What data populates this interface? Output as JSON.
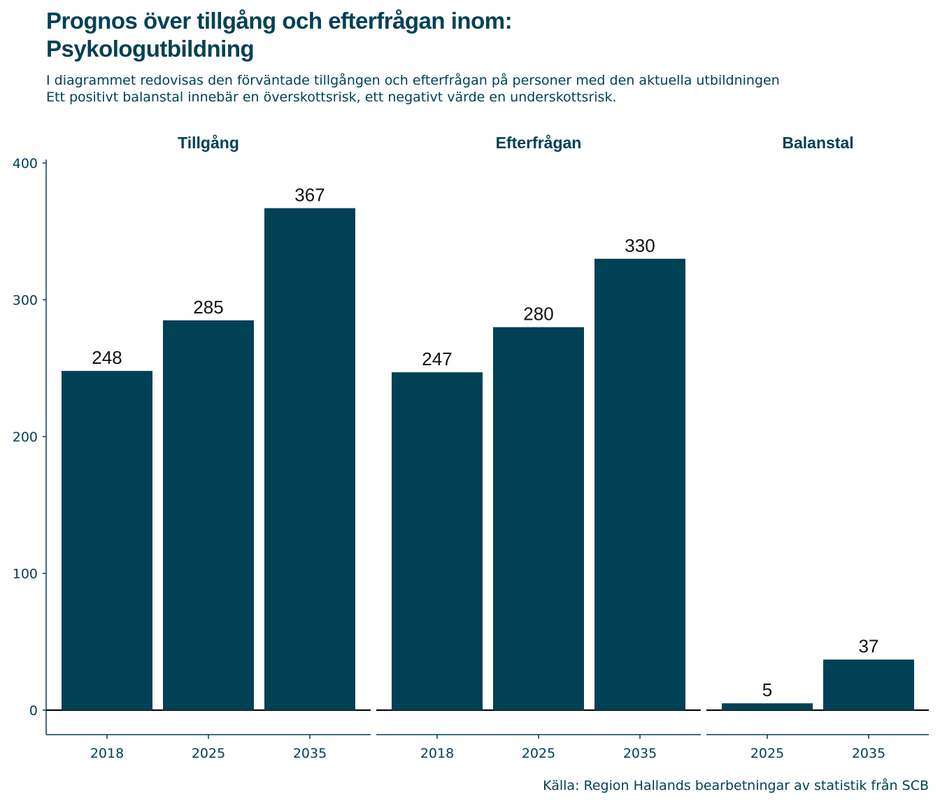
{
  "header": {
    "title_line1": "Prognos över tillgång och efterfrågan inom:",
    "title_line2": "Psykologutbildning",
    "subtitle_line1": "I diagrammet redovisas den förväntade tillgången och efterfrågan på personer med den aktuella utbildningen",
    "subtitle_line2": "Ett positivt balanstal innebär en överskottsrisk, ett negativt värde en underskottsrisk."
  },
  "caption": "Källa: Region Hallands bearbetningar av statistik från SCB",
  "colors": {
    "bar": "#004156",
    "axis_text": "#004156",
    "zero_line": "#000000"
  },
  "chart_data": {
    "type": "bar",
    "ylim": [
      0,
      400
    ],
    "y_ticks": [
      0,
      100,
      200,
      300,
      400
    ],
    "grid": false,
    "legend": "none",
    "panels": [
      {
        "name": "Tillgång",
        "categories": [
          "2018",
          "2025",
          "2035"
        ],
        "values": [
          248,
          285,
          367
        ]
      },
      {
        "name": "Efterfrågan",
        "categories": [
          "2018",
          "2025",
          "2035"
        ],
        "values": [
          247,
          280,
          330
        ]
      },
      {
        "name": "Balanstal",
        "categories": [
          "2025",
          "2035"
        ],
        "values": [
          5,
          37
        ]
      }
    ]
  }
}
